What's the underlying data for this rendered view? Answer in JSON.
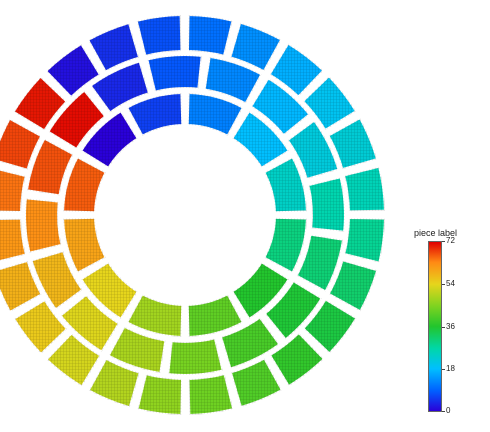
{
  "legend": {
    "title": "piece label",
    "ticks": [
      "72",
      "54",
      "36",
      "18",
      "0"
    ],
    "range": [
      0,
      72
    ]
  },
  "colors": {
    "gradient": [
      "#2a00d8",
      "#0060ff",
      "#00bfff",
      "#00d7a8",
      "#22c52d",
      "#7ed320",
      "#e6d51c",
      "#ff8a14",
      "#e00000"
    ]
  },
  "visual": {
    "pieces": 72,
    "layout": "ring"
  }
}
